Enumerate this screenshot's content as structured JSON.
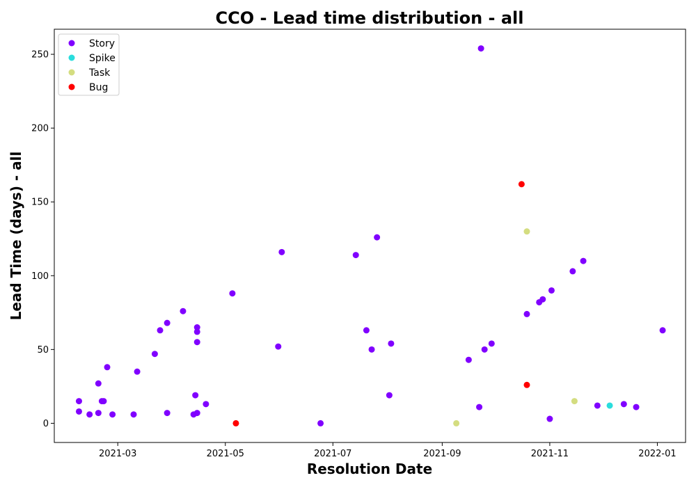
{
  "chart_data": {
    "type": "scatter",
    "title": "CCO - Lead time distribution - all",
    "xlabel": "Resolution Date",
    "ylabel": "Lead Time (days) - all",
    "x_ticks": [
      "2021-03",
      "2021-05",
      "2021-07",
      "2021-09",
      "2021-11",
      "2022-01"
    ],
    "y_ticks": [
      0,
      50,
      100,
      150,
      200,
      250
    ],
    "xlim": [
      "2021-01-24",
      "2022-01-17"
    ],
    "ylim": [
      -13,
      267
    ],
    "grid": false,
    "legend_position": "top-left",
    "series": [
      {
        "name": "Story",
        "color": "#8000ff",
        "points": [
          {
            "x": "2021-02-07",
            "y": 15
          },
          {
            "x": "2021-02-07",
            "y": 8
          },
          {
            "x": "2021-02-13",
            "y": 6
          },
          {
            "x": "2021-02-18",
            "y": 27
          },
          {
            "x": "2021-02-18",
            "y": 7
          },
          {
            "x": "2021-02-20",
            "y": 15
          },
          {
            "x": "2021-02-21",
            "y": 15
          },
          {
            "x": "2021-02-23",
            "y": 38
          },
          {
            "x": "2021-02-26",
            "y": 6
          },
          {
            "x": "2021-03-10",
            "y": 6
          },
          {
            "x": "2021-03-12",
            "y": 35
          },
          {
            "x": "2021-03-22",
            "y": 47
          },
          {
            "x": "2021-03-25",
            "y": 63
          },
          {
            "x": "2021-03-29",
            "y": 68
          },
          {
            "x": "2021-03-29",
            "y": 7
          },
          {
            "x": "2021-04-07",
            "y": 76
          },
          {
            "x": "2021-04-13",
            "y": 6
          },
          {
            "x": "2021-04-14",
            "y": 19
          },
          {
            "x": "2021-04-15",
            "y": 7
          },
          {
            "x": "2021-04-15",
            "y": 65
          },
          {
            "x": "2021-04-15",
            "y": 62
          },
          {
            "x": "2021-04-15",
            "y": 55
          },
          {
            "x": "2021-04-20",
            "y": 13
          },
          {
            "x": "2021-05-05",
            "y": 88
          },
          {
            "x": "2021-05-31",
            "y": 52
          },
          {
            "x": "2021-06-02",
            "y": 116
          },
          {
            "x": "2021-06-24",
            "y": 0
          },
          {
            "x": "2021-07-14",
            "y": 114
          },
          {
            "x": "2021-07-20",
            "y": 63
          },
          {
            "x": "2021-07-23",
            "y": 50
          },
          {
            "x": "2021-07-26",
            "y": 126
          },
          {
            "x": "2021-08-02",
            "y": 19
          },
          {
            "x": "2021-08-03",
            "y": 54
          },
          {
            "x": "2021-09-16",
            "y": 43
          },
          {
            "x": "2021-09-22",
            "y": 11
          },
          {
            "x": "2021-09-23",
            "y": 254
          },
          {
            "x": "2021-09-25",
            "y": 50
          },
          {
            "x": "2021-09-29",
            "y": 54
          },
          {
            "x": "2021-10-19",
            "y": 74
          },
          {
            "x": "2021-10-26",
            "y": 82
          },
          {
            "x": "2021-10-28",
            "y": 84
          },
          {
            "x": "2021-11-01",
            "y": 3
          },
          {
            "x": "2021-11-02",
            "y": 90
          },
          {
            "x": "2021-11-14",
            "y": 103
          },
          {
            "x": "2021-11-20",
            "y": 110
          },
          {
            "x": "2021-11-28",
            "y": 12
          },
          {
            "x": "2021-12-13",
            "y": 13
          },
          {
            "x": "2021-12-20",
            "y": 11
          },
          {
            "x": "2022-01-04",
            "y": 63
          }
        ]
      },
      {
        "name": "Spike",
        "color": "#2adddd",
        "points": [
          {
            "x": "2021-12-05",
            "y": 12
          }
        ]
      },
      {
        "name": "Task",
        "color": "#d4dd80",
        "points": [
          {
            "x": "2021-09-09",
            "y": 0
          },
          {
            "x": "2021-10-19",
            "y": 130
          },
          {
            "x": "2021-11-15",
            "y": 15
          }
        ]
      },
      {
        "name": "Bug",
        "color": "#ff0000",
        "points": [
          {
            "x": "2021-05-07",
            "y": 0
          },
          {
            "x": "2021-10-16",
            "y": 162
          },
          {
            "x": "2021-10-19",
            "y": 26
          }
        ]
      }
    ]
  }
}
